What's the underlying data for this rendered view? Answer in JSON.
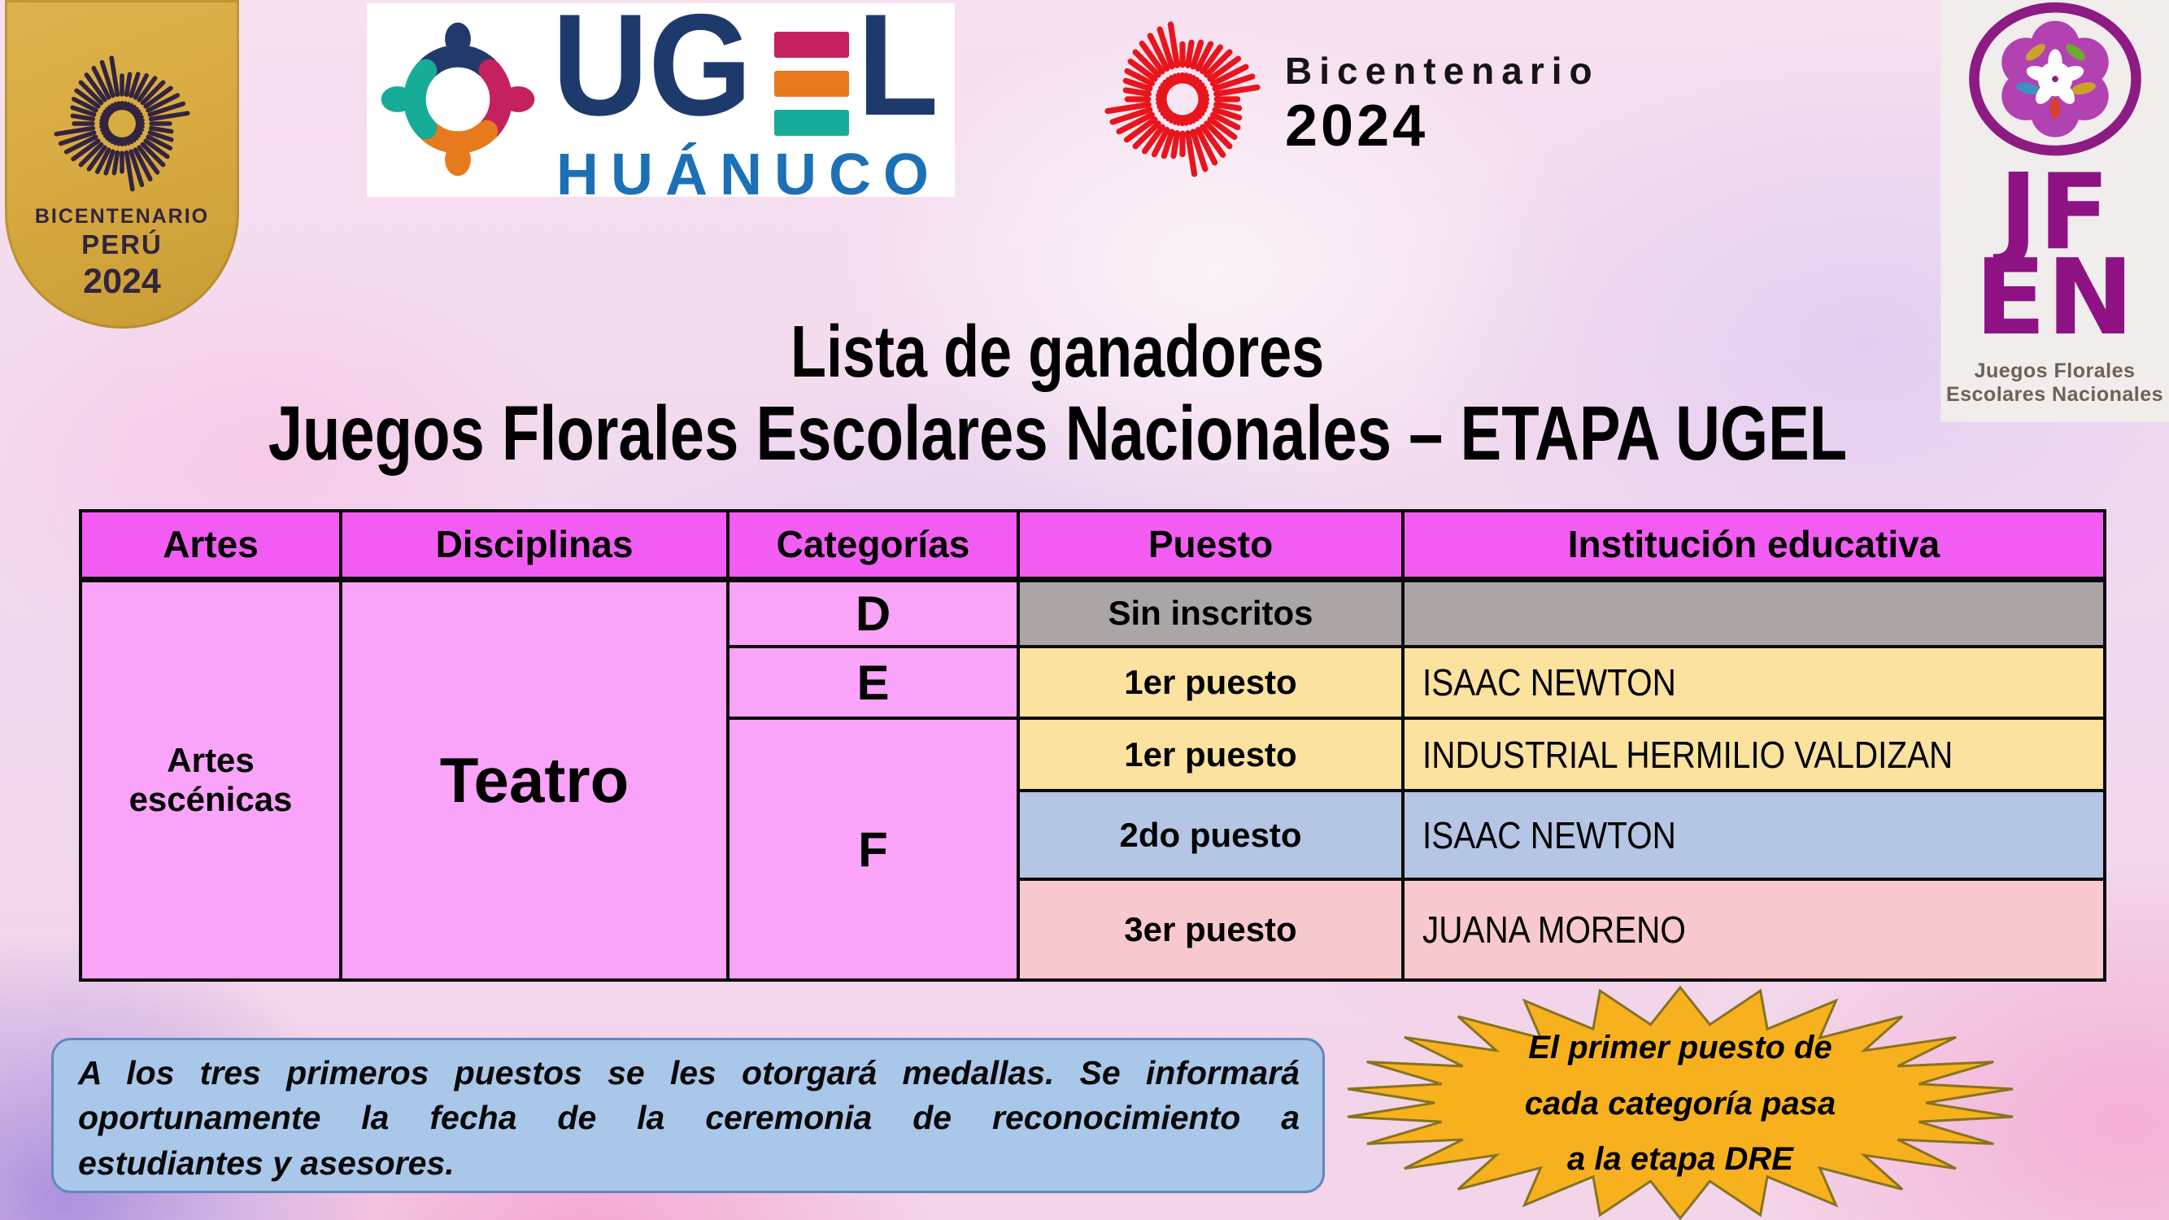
{
  "colors": {
    "magenta_header": "#F25CF2",
    "pink_body": "#F9A3F9",
    "gray_row": "#ABA5A6",
    "yellow_row": "#FBE29F",
    "blue_row": "#B4C6E4",
    "rose_row": "#F7C9CE",
    "gold_badge": "#D8AB41",
    "gold_badge_dark": "#33243F",
    "ugel_navy": "#1E3A6C",
    "ugel_blue": "#1C70B8",
    "red_burst": "#E8151D",
    "jfen_purple": "#8E1283",
    "jfen_bg": "#F0EDEC",
    "note_bg": "#A9C7E9",
    "note_border": "#6089BC",
    "star_fill": "#F7B11E",
    "star_stroke": "#87731F"
  },
  "logos": {
    "gold_badge": {
      "line1": "BICENTENARIO",
      "line2": "PERÚ",
      "line3": "2024"
    },
    "ugel": {
      "acronym_left": "UG",
      "acronym_right": "L",
      "city": "HUÁNUCO"
    },
    "bicentenario": {
      "line1": "Bicentenario",
      "line2": "2024"
    },
    "jfen": {
      "top": "JF",
      "bottom": "EN",
      "caption_line1": "Juegos Florales",
      "caption_line2": "Escolares Nacionales"
    }
  },
  "title": {
    "line1": "Lista de ganadores",
    "line2": "Juegos Florales Escolares Nacionales – ETAPA UGEL"
  },
  "table": {
    "headers": [
      "Artes",
      "Disciplinas",
      "Categorías",
      "Puesto",
      "Institución educativa"
    ],
    "art": "Artes escénicas",
    "discipline": "Teatro",
    "categories": {
      "d": "D",
      "e": "E",
      "f": "F"
    },
    "rows": [
      {
        "categoria": "D",
        "puesto": "Sin inscritos",
        "institucion": ""
      },
      {
        "categoria": "E",
        "puesto": "1er puesto",
        "institucion": "ISAAC NEWTON"
      },
      {
        "categoria": "F",
        "puesto": "1er puesto",
        "institucion": "INDUSTRIAL HERMILIO VALDIZAN"
      },
      {
        "categoria": "F",
        "puesto": "2do puesto",
        "institucion": "ISAAC NEWTON"
      },
      {
        "categoria": "F",
        "puesto": "3er puesto",
        "institucion": "JUANA MORENO"
      }
    ]
  },
  "note": {
    "lines": [
      "A los tres primeros puestos se les otorgará medallas. Se informará",
      "oportunamente la fecha de la ceremonia de reconocimiento a",
      "estudiantes y asesores."
    ]
  },
  "callout": {
    "line1": "El primer puesto de",
    "line2": "cada categoría pasa",
    "line3": "a la etapa DRE"
  }
}
